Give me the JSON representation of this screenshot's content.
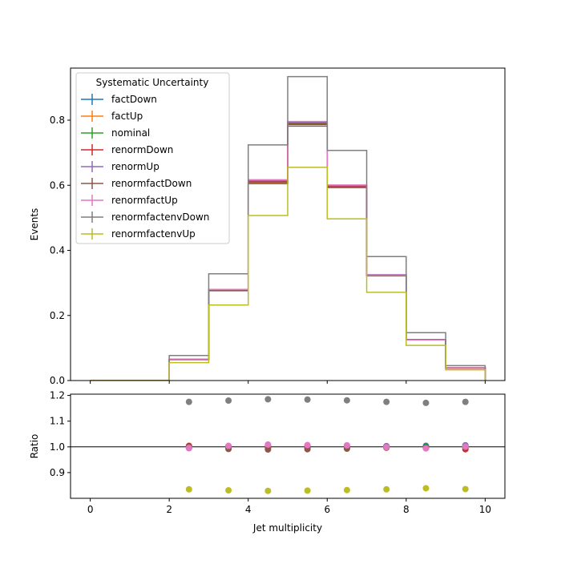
{
  "chart_data": [
    {
      "panel": "main",
      "type": "line",
      "drawstyle": "step",
      "xlabel": "",
      "ylabel": "Events",
      "xlim": [
        -0.5,
        10.5
      ],
      "ylim": [
        0,
        0.96
      ],
      "xticks": [
        "0",
        "2",
        "4",
        "6",
        "8",
        "10"
      ],
      "yticks": [
        "0.0",
        "0.2",
        "0.4",
        "0.6",
        "0.8"
      ],
      "bin_edges": [
        0,
        1,
        2,
        3,
        4,
        5,
        6,
        7,
        8,
        9,
        10
      ],
      "legend_title": "Systematic Uncertainty",
      "legend_position": "upper-left",
      "series": [
        {
          "name": "factDown",
          "color": "#1f77b4",
          "values": [
            0,
            0,
            0.064,
            0.279,
            0.613,
            0.791,
            0.598,
            0.325,
            0.126,
            0.039
          ]
        },
        {
          "name": "factUp",
          "color": "#ff7f0e",
          "values": [
            0,
            0,
            0.065,
            0.278,
            0.609,
            0.787,
            0.596,
            0.323,
            0.125,
            0.039
          ]
        },
        {
          "name": "nominal",
          "color": "#2ca02c",
          "values": [
            0,
            0,
            0.065,
            0.278,
            0.611,
            0.789,
            0.597,
            0.324,
            0.126,
            0.039
          ]
        },
        {
          "name": "renormDown",
          "color": "#d62728",
          "values": [
            0,
            0,
            0.065,
            0.279,
            0.61,
            0.787,
            0.597,
            0.324,
            0.126,
            0.038
          ]
        },
        {
          "name": "renormUp",
          "color": "#9467bd",
          "values": [
            0,
            0,
            0.064,
            0.278,
            0.614,
            0.794,
            0.599,
            0.325,
            0.125,
            0.039
          ]
        },
        {
          "name": "renormfactDown",
          "color": "#8c564b",
          "values": [
            0,
            0,
            0.065,
            0.276,
            0.605,
            0.782,
            0.593,
            0.322,
            0.125,
            0.039
          ]
        },
        {
          "name": "renormfactUp",
          "color": "#e377c2",
          "values": [
            0,
            0,
            0.064,
            0.28,
            0.617,
            0.796,
            0.601,
            0.324,
            0.125,
            0.039
          ]
        },
        {
          "name": "renormfactenvDown",
          "color": "#7f7f7f",
          "values": [
            0,
            0,
            0.077,
            0.328,
            0.724,
            0.934,
            0.707,
            0.381,
            0.147,
            0.046
          ]
        },
        {
          "name": "renormfactenvUp",
          "color": "#bcbd22",
          "values": [
            0,
            0,
            0.055,
            0.232,
            0.507,
            0.655,
            0.497,
            0.271,
            0.108,
            0.033
          ]
        }
      ]
    },
    {
      "panel": "ratio",
      "type": "scatter",
      "xlabel": "Jet multiplicity",
      "ylabel": "Ratio",
      "xlim": [
        -0.5,
        10.5
      ],
      "ylim": [
        0.8,
        1.205
      ],
      "xticks": [
        "0",
        "2",
        "4",
        "6",
        "8",
        "10"
      ],
      "yticks": [
        "0.9",
        "1.0",
        "1.1",
        "1.2"
      ],
      "reference_line": 1.0,
      "x": [
        2.5,
        3.5,
        4.5,
        5.5,
        6.5,
        7.5,
        8.5,
        9.5
      ],
      "series": [
        {
          "name": "factDown",
          "color": "#1f77b4",
          "values": [
            0.996,
            1.002,
            1.003,
            1.003,
            1.002,
            1.003,
            1.004,
            1.006
          ]
        },
        {
          "name": "factUp",
          "color": "#ff7f0e",
          "values": [
            1.003,
            0.998,
            0.997,
            0.997,
            0.998,
            0.997,
            0.996,
            0.995
          ]
        },
        {
          "name": "nominal",
          "color": "#2ca02c",
          "values": [
            1.0,
            1.0,
            1.0,
            1.0,
            1.0,
            1.0,
            1.0,
            1.0
          ]
        },
        {
          "name": "renormDown",
          "color": "#d62728",
          "values": [
            1.004,
            1.002,
            0.998,
            0.997,
            0.999,
            0.999,
            0.996,
            0.991
          ]
        },
        {
          "name": "renormUp",
          "color": "#9467bd",
          "values": [
            0.995,
            0.998,
            1.004,
            1.005,
            1.003,
            1.002,
            0.995,
            1.005
          ]
        },
        {
          "name": "renormfactDown",
          "color": "#8c564b",
          "values": [
            1.0,
            0.992,
            0.99,
            0.991,
            0.993,
            0.997,
            0.996,
            0.998
          ]
        },
        {
          "name": "renormfactUp",
          "color": "#e377c2",
          "values": [
            0.996,
            1.004,
            1.009,
            1.007,
            1.006,
            0.999,
            0.994,
            1.001
          ]
        },
        {
          "name": "renormfactenvDown",
          "color": "#7f7f7f",
          "values": [
            1.175,
            1.18,
            1.185,
            1.184,
            1.181,
            1.175,
            1.171,
            1.175
          ]
        },
        {
          "name": "renormfactenvUp",
          "color": "#bcbd22",
          "values": [
            0.835,
            0.831,
            0.829,
            0.83,
            0.832,
            0.835,
            0.839,
            0.836
          ]
        }
      ]
    }
  ]
}
